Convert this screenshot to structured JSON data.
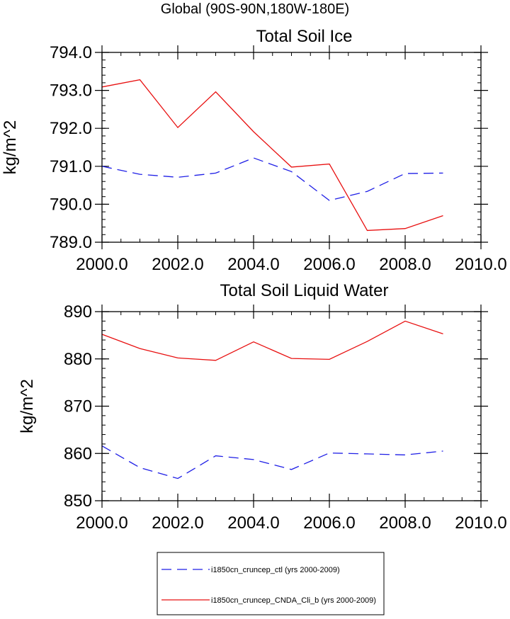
{
  "figure": {
    "suptitle": "Global (90S-90N,180W-180E)"
  },
  "colors": {
    "ctl": "#1f1fe6",
    "cnda": "#e81010",
    "axis": "#000000"
  },
  "legend": {
    "placement": "bottom-center",
    "entries": [
      {
        "label": "i1850cn_cruncep_ctl (yrs 2000-2009)",
        "style": "dashed",
        "color": "#1f1fe6"
      },
      {
        "label": "i1850cn_cruncep_CNDA_Cli_b (yrs 2000-2009)",
        "style": "solid",
        "color": "#e81010"
      }
    ]
  },
  "chart_data": [
    {
      "type": "line",
      "title": "Total Soil Ice",
      "xlabel": "",
      "ylabel": "kg/m^2",
      "xlim": [
        2000,
        2010
      ],
      "ylim": [
        789,
        794
      ],
      "xticks": [
        2000,
        2002,
        2004,
        2006,
        2008,
        2010
      ],
      "xtick_labels": [
        "2000.0",
        "2002.0",
        "2004.0",
        "2006.0",
        "2008.0",
        "2010.0"
      ],
      "yticks": [
        789,
        790,
        791,
        792,
        793,
        794
      ],
      "ytick_labels": [
        "789.0",
        "790.0",
        "791.0",
        "792.0",
        "793.0",
        "794.0"
      ],
      "x": [
        2000,
        2001,
        2002,
        2003,
        2004,
        2005,
        2006,
        2007,
        2008,
        2009
      ],
      "series": [
        {
          "values": [
            791.0,
            790.79,
            790.71,
            790.82,
            791.22,
            790.86,
            790.1,
            790.34,
            790.81,
            790.82
          ],
          "style": "dashed",
          "color": "#1f1fe6"
        },
        {
          "values": [
            793.09,
            793.28,
            792.02,
            792.96,
            791.91,
            790.98,
            791.06,
            789.31,
            789.36,
            789.7
          ],
          "style": "solid",
          "color": "#e81010"
        }
      ]
    },
    {
      "type": "line",
      "title": "Total Soil Liquid Water",
      "xlabel": "",
      "ylabel": "kg/m^2",
      "xlim": [
        2000,
        2010
      ],
      "ylim": [
        850,
        890
      ],
      "xticks": [
        2000,
        2002,
        2004,
        2006,
        2008,
        2010
      ],
      "xtick_labels": [
        "2000.0",
        "2002.0",
        "2004.0",
        "2006.0",
        "2008.0",
        "2010.0"
      ],
      "yticks": [
        850,
        860,
        870,
        880,
        890
      ],
      "ytick_labels": [
        "850",
        "860",
        "870",
        "880",
        "890"
      ],
      "x": [
        2000,
        2001,
        2002,
        2003,
        2004,
        2005,
        2006,
        2007,
        2008,
        2009
      ],
      "series": [
        {
          "values": [
            861.6,
            857.0,
            854.7,
            859.5,
            858.7,
            856.6,
            860.1,
            859.9,
            859.7,
            860.5
          ],
          "style": "dashed",
          "color": "#1f1fe6"
        },
        {
          "values": [
            885.2,
            882.2,
            880.2,
            879.7,
            883.6,
            880.1,
            879.9,
            883.7,
            888.0,
            885.3
          ],
          "style": "solid",
          "color": "#e81010"
        }
      ]
    }
  ]
}
